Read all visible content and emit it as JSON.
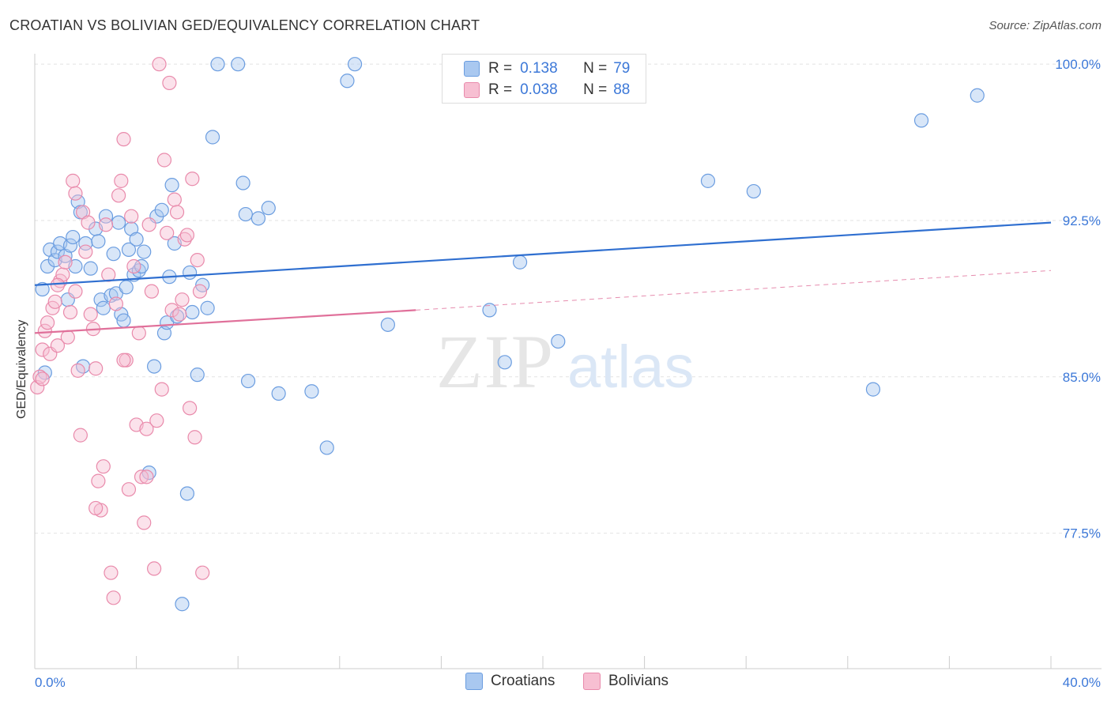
{
  "title": "CROATIAN VS BOLIVIAN GED/EQUIVALENCY CORRELATION CHART",
  "source": "Source: ZipAtlas.com",
  "watermark": {
    "zip": "ZIP",
    "atlas": "atlas"
  },
  "legend_top": [
    {
      "r_label": "R =",
      "r_value": "0.138",
      "n_label": "N =",
      "n_value": "79"
    },
    {
      "r_label": "R =",
      "r_value": "0.038",
      "n_label": "N =",
      "n_value": "88"
    }
  ],
  "legend_bottom": [
    "Croatians",
    "Bolivians"
  ],
  "chart_data": {
    "type": "scatter",
    "title": "CROATIAN VS BOLIVIAN GED/EQUIVALENCY CORRELATION CHART",
    "xlabel": "",
    "ylabel": "GED/Equivalency",
    "xlim": [
      0,
      40
    ],
    "ylim": [
      71,
      100.5
    ],
    "x_tick_labels": [
      "0.0%",
      "40.0%"
    ],
    "y_ticks": [
      77.5,
      85.0,
      92.5,
      100.0
    ],
    "y_tick_labels": [
      "77.5%",
      "85.0%",
      "92.5%",
      "100.0%"
    ],
    "colors": {
      "Croatians": "#6b9de0",
      "Bolivians": "#e98aab",
      "Croatians_line": "#2f6fd0",
      "Bolivians_line": "#e0709a",
      "tick_label": "#3c78d8"
    },
    "series": [
      {
        "name": "Croatians",
        "r": 0.138,
        "n": 79,
        "trend": {
          "x0": 0,
          "y0": 89.4,
          "x1": 40,
          "y1": 92.4,
          "style": "solid"
        },
        "points": [
          [
            0.3,
            89.2
          ],
          [
            0.4,
            85.2
          ],
          [
            0.5,
            90.3
          ],
          [
            0.6,
            91.1
          ],
          [
            0.8,
            90.6
          ],
          [
            0.9,
            91.0
          ],
          [
            1.0,
            91.4
          ],
          [
            1.2,
            90.8
          ],
          [
            1.3,
            88.7
          ],
          [
            1.4,
            91.3
          ],
          [
            1.5,
            91.7
          ],
          [
            1.6,
            90.3
          ],
          [
            1.7,
            93.4
          ],
          [
            1.8,
            92.9
          ],
          [
            1.9,
            85.5
          ],
          [
            2.0,
            91.4
          ],
          [
            2.2,
            90.2
          ],
          [
            2.4,
            92.1
          ],
          [
            2.5,
            91.5
          ],
          [
            2.6,
            88.7
          ],
          [
            2.7,
            88.3
          ],
          [
            2.8,
            92.7
          ],
          [
            3.0,
            88.9
          ],
          [
            3.1,
            90.9
          ],
          [
            3.2,
            89.0
          ],
          [
            3.3,
            92.4
          ],
          [
            3.4,
            88.0
          ],
          [
            3.5,
            87.7
          ],
          [
            3.6,
            89.3
          ],
          [
            3.7,
            91.1
          ],
          [
            3.8,
            92.1
          ],
          [
            3.9,
            89.9
          ],
          [
            4.0,
            91.6
          ],
          [
            4.1,
            90.1
          ],
          [
            4.2,
            90.3
          ],
          [
            4.3,
            91.0
          ],
          [
            4.5,
            80.4
          ],
          [
            4.7,
            85.5
          ],
          [
            4.8,
            92.7
          ],
          [
            5.0,
            93.0
          ],
          [
            5.1,
            87.1
          ],
          [
            5.2,
            87.6
          ],
          [
            5.3,
            89.8
          ],
          [
            5.4,
            94.2
          ],
          [
            5.5,
            91.4
          ],
          [
            5.6,
            87.9
          ],
          [
            5.8,
            74.1
          ],
          [
            6.0,
            79.4
          ],
          [
            6.1,
            90.0
          ],
          [
            6.2,
            88.1
          ],
          [
            6.4,
            85.1
          ],
          [
            6.6,
            89.4
          ],
          [
            6.8,
            88.3
          ],
          [
            7.0,
            96.5
          ],
          [
            7.2,
            100.0
          ],
          [
            8.0,
            100.0
          ],
          [
            8.2,
            94.3
          ],
          [
            8.3,
            92.8
          ],
          [
            8.4,
            84.8
          ],
          [
            8.8,
            92.6
          ],
          [
            9.2,
            93.1
          ],
          [
            9.6,
            84.2
          ],
          [
            10.9,
            84.3
          ],
          [
            11.5,
            81.6
          ],
          [
            12.3,
            99.2
          ],
          [
            12.6,
            100.0
          ],
          [
            13.9,
            87.5
          ],
          [
            17.9,
            88.2
          ],
          [
            18.5,
            85.7
          ],
          [
            19.1,
            90.5
          ],
          [
            20.6,
            86.7
          ],
          [
            26.5,
            94.4
          ],
          [
            28.3,
            93.9
          ],
          [
            33.0,
            84.4
          ],
          [
            34.9,
            97.3
          ],
          [
            37.1,
            98.5
          ]
        ]
      },
      {
        "name": "Bolivians",
        "r": 0.038,
        "n": 88,
        "trend": {
          "x0": 0,
          "y0": 87.1,
          "x1": 15,
          "y1": 88.2,
          "x_dash_end": 40,
          "y_dash_end": 90.1,
          "style": "solid-then-dashed"
        },
        "points": [
          [
            0.1,
            84.5
          ],
          [
            0.2,
            85.0
          ],
          [
            0.3,
            86.3
          ],
          [
            0.4,
            87.2
          ],
          [
            0.5,
            87.6
          ],
          [
            0.6,
            86.1
          ],
          [
            0.7,
            88.3
          ],
          [
            0.8,
            88.6
          ],
          [
            0.9,
            86.5
          ],
          [
            1.0,
            89.6
          ],
          [
            1.1,
            89.9
          ],
          [
            1.2,
            90.5
          ],
          [
            1.3,
            86.9
          ],
          [
            1.4,
            88.1
          ],
          [
            1.5,
            94.4
          ],
          [
            1.6,
            93.8
          ],
          [
            1.7,
            85.3
          ],
          [
            1.8,
            82.2
          ],
          [
            1.9,
            92.9
          ],
          [
            2.0,
            91.0
          ],
          [
            2.1,
            92.4
          ],
          [
            2.2,
            88.0
          ],
          [
            2.3,
            87.3
          ],
          [
            2.4,
            85.4
          ],
          [
            2.5,
            80.0
          ],
          [
            2.6,
            78.6
          ],
          [
            2.7,
            80.7
          ],
          [
            2.8,
            92.3
          ],
          [
            2.9,
            89.9
          ],
          [
            3.0,
            75.6
          ],
          [
            3.1,
            74.4
          ],
          [
            3.2,
            88.5
          ],
          [
            3.3,
            93.7
          ],
          [
            3.4,
            94.4
          ],
          [
            3.5,
            96.4
          ],
          [
            3.6,
            85.8
          ],
          [
            3.7,
            79.6
          ],
          [
            3.8,
            92.7
          ],
          [
            3.9,
            90.3
          ],
          [
            4.0,
            82.7
          ],
          [
            4.1,
            87.1
          ],
          [
            4.2,
            80.2
          ],
          [
            4.3,
            78.0
          ],
          [
            4.4,
            82.5
          ],
          [
            4.5,
            92.3
          ],
          [
            4.6,
            89.1
          ],
          [
            4.7,
            75.8
          ],
          [
            4.8,
            82.9
          ],
          [
            4.9,
            100.0
          ],
          [
            5.0,
            84.4
          ],
          [
            5.1,
            95.4
          ],
          [
            5.2,
            91.9
          ],
          [
            5.3,
            99.1
          ],
          [
            5.4,
            88.2
          ],
          [
            5.5,
            93.5
          ],
          [
            5.6,
            92.9
          ],
          [
            5.7,
            88.0
          ],
          [
            5.8,
            88.7
          ],
          [
            5.9,
            91.6
          ],
          [
            6.0,
            91.8
          ],
          [
            6.1,
            83.5
          ],
          [
            6.2,
            94.5
          ],
          [
            6.3,
            82.1
          ],
          [
            6.4,
            90.6
          ],
          [
            6.5,
            89.1
          ],
          [
            6.6,
            75.6
          ],
          [
            0.3,
            84.9
          ],
          [
            0.9,
            89.4
          ],
          [
            1.6,
            89.1
          ],
          [
            2.4,
            78.7
          ],
          [
            3.5,
            85.8
          ],
          [
            4.4,
            80.2
          ]
        ]
      }
    ]
  }
}
